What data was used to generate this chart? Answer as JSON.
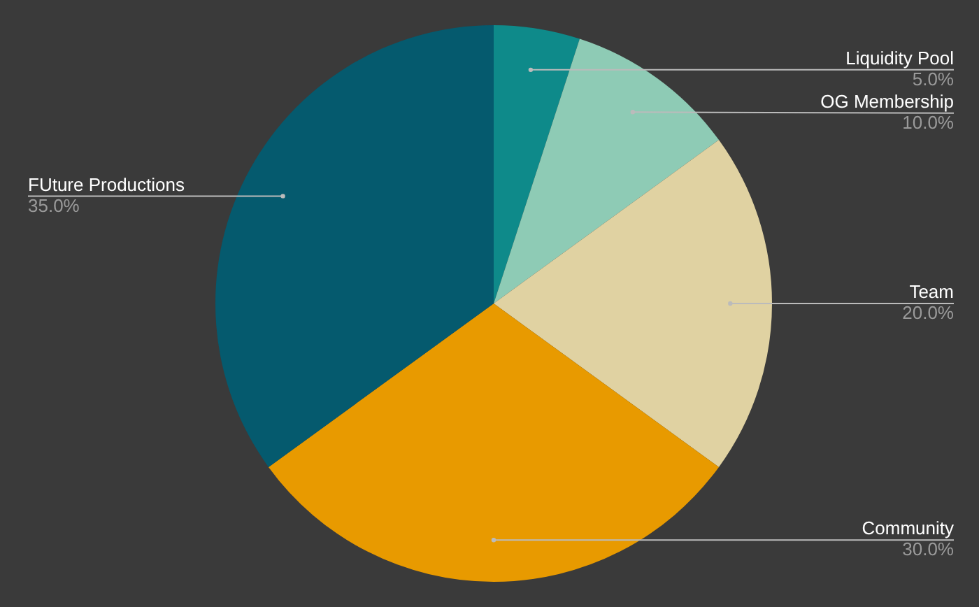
{
  "chart_data": {
    "type": "pie",
    "categories": [
      "Liquidity Pool",
      "OG Membership",
      "Team",
      "Community",
      "FUture Productions"
    ],
    "values": [
      5,
      10,
      20,
      30,
      35
    ],
    "colors": [
      "#0e8a8a",
      "#8ecbb5",
      "#e0d2a2",
      "#e89a00",
      "#055a6e"
    ],
    "value_labels": [
      "5.0%",
      "10.0%",
      "20.0%",
      "30.0%",
      "35.0%"
    ],
    "legend": false
  }
}
